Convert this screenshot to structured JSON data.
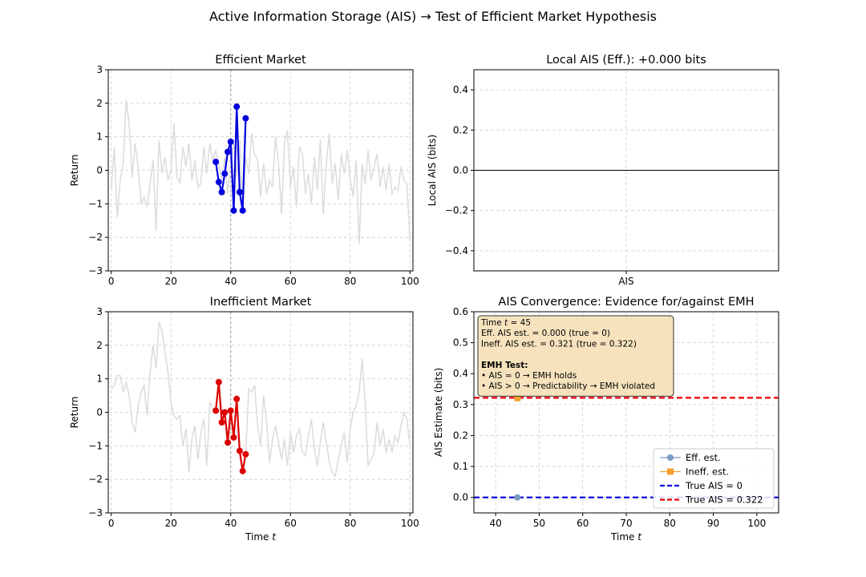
{
  "suptitle": "Active Information Storage (AIS) → Test of Efficient Market Hypothesis",
  "chart_data": [
    {
      "id": "efficient",
      "type": "line",
      "title": "Efficient Market",
      "xlabel": "",
      "ylabel": "Return",
      "xlim": [
        -1,
        101
      ],
      "ylim": [
        -3,
        3
      ],
      "xticks": [
        0,
        20,
        40,
        60,
        80,
        100
      ],
      "yticks": [
        -3,
        -2,
        -1,
        0,
        1,
        2,
        3
      ],
      "xtick_labels": [
        "0",
        "20",
        "40",
        "60",
        "80",
        "100"
      ],
      "ytick_labels": [
        "−3",
        "−2",
        "−1",
        "0",
        "1",
        "2",
        "3"
      ],
      "current_time": 40,
      "background": {
        "color": "#dddddd",
        "values": [
          -0.6,
          0.7,
          -1.4,
          -0.3,
          0.2,
          2.1,
          1.4,
          -0.2,
          0.8,
          0.1,
          -1.0,
          -0.8,
          -1.1,
          -0.4,
          0.3,
          -1.8,
          0.9,
          -0.1,
          0.4,
          -0.3,
          0.0,
          1.4,
          -0.2,
          -0.4,
          0.7,
          0.1,
          0.8,
          -0.3,
          0.3,
          -0.5,
          -0.4,
          0.7,
          -0.1,
          0.8,
          0.3,
          0.6,
          0.2,
          -0.3,
          0.4,
          -0.7,
          0.3,
          0.8,
          -0.2,
          0.9,
          -1.2,
          0.4,
          -0.1,
          1.1,
          0.5,
          0.3,
          -0.8,
          0.2,
          -0.7,
          -0.3,
          -0.5,
          1.0,
          0.2,
          -1.3,
          0.8,
          1.2,
          -0.5,
          0.1,
          -1.1,
          0.7,
          0.5,
          -0.7,
          -0.1,
          -1.0,
          0.4,
          -0.6,
          0.9,
          -1.3,
          0.2,
          1.1,
          -0.4,
          0.2,
          -0.9,
          0.5,
          -0.1,
          0.6,
          -0.3,
          -0.8,
          0.3,
          -2.2,
          0.2,
          -0.4,
          0.6,
          -0.3,
          0.1,
          0.5,
          -0.5,
          0.1,
          -0.6,
          0.2,
          -0.7,
          -0.5,
          -0.6,
          0.1,
          -0.3,
          -0.4,
          -2.1
        ]
      },
      "series": [
        {
          "name": "efficient-window",
          "color": "#0000dd",
          "x": [
            35,
            36,
            37,
            38,
            39,
            40,
            41,
            42,
            43,
            44,
            45
          ],
          "values": [
            0.25,
            -0.35,
            -0.65,
            -0.1,
            0.55,
            0.85,
            -1.2,
            1.9,
            -0.65,
            -1.2,
            1.55
          ]
        }
      ]
    },
    {
      "id": "local_ais",
      "type": "bar",
      "title": "Local AIS (Eff.): +0.000 bits",
      "xlabel": "",
      "ylabel": "Local AIS (bits)",
      "categories": [
        "AIS"
      ],
      "values": [
        0.0
      ],
      "ylim": [
        -0.5,
        0.5
      ],
      "yticks": [
        -0.4,
        -0.2,
        0.0,
        0.2,
        0.4
      ],
      "ytick_labels": [
        "−0.4",
        "−0.2",
        "0.0",
        "0.2",
        "0.4"
      ]
    },
    {
      "id": "inefficient",
      "type": "line",
      "title": "Inefficient Market",
      "xlabel": "Time t",
      "ylabel": "Return",
      "xlim": [
        -1,
        101
      ],
      "ylim": [
        -3,
        3
      ],
      "xticks": [
        0,
        20,
        40,
        60,
        80,
        100
      ],
      "yticks": [
        -3,
        -2,
        -1,
        0,
        1,
        2,
        3
      ],
      "xtick_labels": [
        "0",
        "20",
        "40",
        "60",
        "80",
        "100"
      ],
      "ytick_labels": [
        "−3",
        "−2",
        "−1",
        "0",
        "1",
        "2",
        "3"
      ],
      "current_time": 40,
      "background": {
        "color": "#dddddd",
        "values": [
          0.7,
          0.8,
          1.1,
          1.1,
          0.6,
          0.9,
          0.5,
          -0.3,
          -0.6,
          0.2,
          0.6,
          0.8,
          -0.1,
          1.2,
          2.0,
          1.3,
          2.7,
          2.4,
          1.8,
          1.2,
          0.3,
          -0.1,
          -0.2,
          -0.1,
          -1.0,
          -0.5,
          -1.8,
          -0.8,
          -0.4,
          -1.4,
          -0.6,
          -0.2,
          -1.6,
          0.3,
          0.1,
          0.0,
          0.9,
          0.1,
          -0.2,
          -0.9,
          0.0,
          -0.8,
          0.4,
          -1.2,
          -1.8,
          -1.3,
          0.7,
          0.6,
          0.8,
          -0.4,
          -1.0,
          0.5,
          -0.3,
          -1.5,
          -0.8,
          -0.4,
          -0.9,
          -1.4,
          -0.8,
          -1.6,
          -0.6,
          -1.2,
          -0.7,
          -0.5,
          -1.2,
          -1.3,
          -0.7,
          -0.2,
          -1.1,
          -1.6,
          -0.9,
          -0.3,
          -0.9,
          -1.5,
          -1.8,
          -1.9,
          -1.4,
          -1.0,
          -0.6,
          -1.5,
          -0.5,
          0.0,
          0.2,
          0.6,
          1.6,
          0.3,
          -1.6,
          -1.4,
          -1.2,
          -0.3,
          -1.0,
          -0.5,
          -1.2,
          -0.8,
          -1.2,
          -0.7,
          -0.9,
          -0.4,
          0.0,
          -0.2,
          -1.0
        ]
      },
      "series": [
        {
          "name": "inefficient-window",
          "color": "#dd0000",
          "x": [
            35,
            36,
            37,
            38,
            39,
            40,
            41,
            42,
            43,
            44,
            45
          ],
          "values": [
            0.05,
            0.9,
            -0.3,
            0.0,
            -0.9,
            0.05,
            -0.75,
            0.4,
            -1.15,
            -1.75,
            -1.25
          ]
        }
      ]
    },
    {
      "id": "convergence",
      "type": "scatter",
      "title": "AIS Convergence: Evidence for/against EMH",
      "xlabel": "Time t",
      "ylabel": "AIS Estimate (bits)",
      "xlim": [
        35,
        105
      ],
      "ylim": [
        -0.05,
        0.6
      ],
      "xticks": [
        40,
        50,
        60,
        70,
        80,
        90,
        100
      ],
      "yticks": [
        0.0,
        0.1,
        0.2,
        0.3,
        0.4,
        0.5,
        0.6
      ],
      "xtick_labels": [
        "40",
        "50",
        "60",
        "70",
        "80",
        "90",
        "100"
      ],
      "ytick_labels": [
        "0.0",
        "0.1",
        "0.2",
        "0.3",
        "0.4",
        "0.5",
        "0.6"
      ],
      "series": [
        {
          "name": "Eff. est.",
          "marker": "circle",
          "color": "#7a9cc0",
          "x": [
            45
          ],
          "values": [
            0.0
          ]
        },
        {
          "name": "Ineff. est.",
          "marker": "square",
          "color": "#f5a030",
          "x": [
            45
          ],
          "values": [
            0.321
          ]
        }
      ],
      "hlines": [
        {
          "name": "True AIS = 0",
          "value": 0.0,
          "color": "#0000dd"
        },
        {
          "name": "True AIS = 0.322",
          "value": 0.322,
          "color": "#ee0000"
        }
      ],
      "legend_position": "lower-right",
      "annotation": {
        "lines": [
          "Time t = 45",
          "Eff. AIS est. = 0.000 (true = 0)",
          "Ineff. AIS est. = 0.321 (true = 0.322)",
          "",
          "EMH Test:",
          "• AIS ≈ 0 → EMH holds",
          "• AIS > 0 → Predictability → EMH violated"
        ]
      }
    }
  ]
}
